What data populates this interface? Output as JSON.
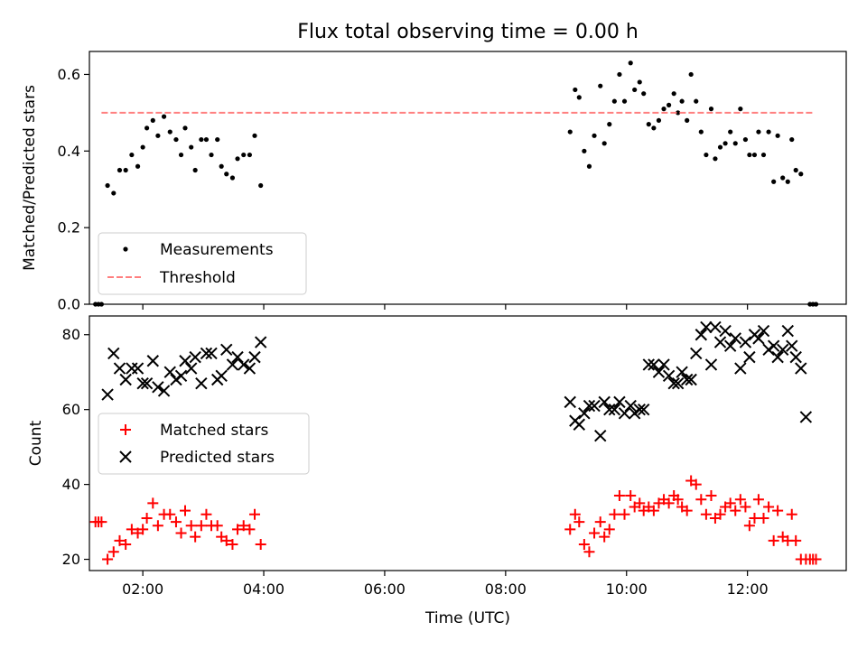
{
  "chart_data": [
    {
      "type": "scatter",
      "title": "Flux total observing time = 0.00 h",
      "xlabel": "",
      "ylabel": "Matched/Predicted stars",
      "xlim": [
        "01:07",
        "13:38"
      ],
      "ylim": [
        0,
        0.66
      ],
      "yticks": [
        0.0,
        0.2,
        0.4,
        0.6
      ],
      "yticklabels": [
        "0.0",
        "0.2",
        "0.4",
        "0.6"
      ],
      "legend_position": "lower-left",
      "series": [
        {
          "name": "Measurements",
          "marker": "dot",
          "color": "#000000",
          "points": [
            [
              "01:13",
              0.0
            ],
            [
              "01:16",
              0.0
            ],
            [
              "01:19",
              0.0
            ],
            [
              "01:25",
              0.31
            ],
            [
              "01:31",
              0.29
            ],
            [
              "01:37",
              0.35
            ],
            [
              "01:43",
              0.35
            ],
            [
              "01:49",
              0.39
            ],
            [
              "01:55",
              0.36
            ],
            [
              "02:00",
              0.41
            ],
            [
              "02:04",
              0.46
            ],
            [
              "02:10",
              0.48
            ],
            [
              "02:15",
              0.44
            ],
            [
              "02:21",
              0.49
            ],
            [
              "02:27",
              0.45
            ],
            [
              "02:33",
              0.43
            ],
            [
              "02:38",
              0.39
            ],
            [
              "02:42",
              0.46
            ],
            [
              "02:48",
              0.41
            ],
            [
              "02:52",
              0.35
            ],
            [
              "02:58",
              0.43
            ],
            [
              "03:03",
              0.43
            ],
            [
              "03:08",
              0.39
            ],
            [
              "03:14",
              0.43
            ],
            [
              "03:18",
              0.36
            ],
            [
              "03:23",
              0.34
            ],
            [
              "03:29",
              0.33
            ],
            [
              "03:34",
              0.38
            ],
            [
              "03:40",
              0.39
            ],
            [
              "03:46",
              0.39
            ],
            [
              "03:51",
              0.44
            ],
            [
              "03:57",
              0.31
            ],
            [
              "09:04",
              0.45
            ],
            [
              "09:09",
              0.56
            ],
            [
              "09:13",
              0.54
            ],
            [
              "09:18",
              0.4
            ],
            [
              "09:23",
              0.36
            ],
            [
              "09:28",
              0.44
            ],
            [
              "09:34",
              0.57
            ],
            [
              "09:38",
              0.42
            ],
            [
              "09:43",
              0.47
            ],
            [
              "09:48",
              0.53
            ],
            [
              "09:53",
              0.6
            ],
            [
              "09:58",
              0.53
            ],
            [
              "10:04",
              0.63
            ],
            [
              "10:08",
              0.56
            ],
            [
              "10:13",
              0.58
            ],
            [
              "10:17",
              0.55
            ],
            [
              "10:22",
              0.47
            ],
            [
              "10:27",
              0.46
            ],
            [
              "10:32",
              0.48
            ],
            [
              "10:37",
              0.51
            ],
            [
              "10:42",
              0.52
            ],
            [
              "10:47",
              0.55
            ],
            [
              "10:51",
              0.5
            ],
            [
              "10:55",
              0.53
            ],
            [
              "11:00",
              0.48
            ],
            [
              "11:04",
              0.6
            ],
            [
              "11:09",
              0.53
            ],
            [
              "11:14",
              0.45
            ],
            [
              "11:19",
              0.39
            ],
            [
              "11:24",
              0.51
            ],
            [
              "11:28",
              0.38
            ],
            [
              "11:33",
              0.41
            ],
            [
              "11:38",
              0.42
            ],
            [
              "11:43",
              0.45
            ],
            [
              "11:48",
              0.42
            ],
            [
              "11:53",
              0.51
            ],
            [
              "11:58",
              0.43
            ],
            [
              "12:02",
              0.39
            ],
            [
              "12:07",
              0.39
            ],
            [
              "12:11",
              0.45
            ],
            [
              "12:16",
              0.39
            ],
            [
              "12:21",
              0.45
            ],
            [
              "12:26",
              0.32
            ],
            [
              "12:30",
              0.44
            ],
            [
              "12:35",
              0.33
            ],
            [
              "12:40",
              0.32
            ],
            [
              "12:44",
              0.43
            ],
            [
              "12:48",
              0.35
            ],
            [
              "12:53",
              0.34
            ],
            [
              "13:02",
              0.0
            ],
            [
              "13:05",
              0.0
            ],
            [
              "13:08",
              0.0
            ]
          ]
        },
        {
          "name": "Threshold",
          "marker": "dashed-line",
          "color": "#ff7f7f",
          "points": [
            [
              "01:19",
              0.5
            ],
            [
              "13:05",
              0.5
            ]
          ]
        }
      ]
    },
    {
      "type": "scatter",
      "title": "",
      "xlabel": "Time (UTC)",
      "ylabel": "Count",
      "xlim": [
        "01:07",
        "13:38"
      ],
      "ylim": [
        17,
        85
      ],
      "yticks": [
        20,
        40,
        60,
        80
      ],
      "yticklabels": [
        "20",
        "40",
        "60",
        "80"
      ],
      "xticks": [
        "02:00",
        "04:00",
        "06:00",
        "08:00",
        "10:00",
        "12:00"
      ],
      "xticklabels": [
        "02:00",
        "04:00",
        "06:00",
        "08:00",
        "10:00",
        "12:00"
      ],
      "legend_position": "center-left",
      "series": [
        {
          "name": "Matched stars",
          "marker": "plus",
          "color": "#ff0000",
          "points": [
            [
              "01:13",
              30
            ],
            [
              "01:16",
              30
            ],
            [
              "01:19",
              30
            ],
            [
              "01:25",
              20
            ],
            [
              "01:31",
              22
            ],
            [
              "01:37",
              25
            ],
            [
              "01:43",
              24
            ],
            [
              "01:49",
              28
            ],
            [
              "01:55",
              27
            ],
            [
              "02:00",
              28
            ],
            [
              "02:04",
              31
            ],
            [
              "02:10",
              35
            ],
            [
              "02:15",
              29
            ],
            [
              "02:21",
              32
            ],
            [
              "02:27",
              32
            ],
            [
              "02:33",
              30
            ],
            [
              "02:38",
              27
            ],
            [
              "02:42",
              33
            ],
            [
              "02:48",
              29
            ],
            [
              "02:52",
              26
            ],
            [
              "02:58",
              29
            ],
            [
              "03:03",
              32
            ],
            [
              "03:08",
              29
            ],
            [
              "03:14",
              29
            ],
            [
              "03:18",
              26
            ],
            [
              "03:23",
              25
            ],
            [
              "03:29",
              24
            ],
            [
              "03:34",
              28
            ],
            [
              "03:40",
              29
            ],
            [
              "03:46",
              28
            ],
            [
              "03:51",
              32
            ],
            [
              "03:57",
              24
            ],
            [
              "09:04",
              28
            ],
            [
              "09:09",
              32
            ],
            [
              "09:13",
              30
            ],
            [
              "09:18",
              24
            ],
            [
              "09:23",
              22
            ],
            [
              "09:28",
              27
            ],
            [
              "09:34",
              30
            ],
            [
              "09:38",
              26
            ],
            [
              "09:43",
              28
            ],
            [
              "09:48",
              32
            ],
            [
              "09:53",
              37
            ],
            [
              "09:58",
              32
            ],
            [
              "10:04",
              37
            ],
            [
              "10:08",
              34
            ],
            [
              "10:13",
              35
            ],
            [
              "10:17",
              33
            ],
            [
              "10:22",
              34
            ],
            [
              "10:27",
              33
            ],
            [
              "10:32",
              35
            ],
            [
              "10:37",
              36
            ],
            [
              "10:42",
              35
            ],
            [
              "10:47",
              37
            ],
            [
              "10:51",
              36
            ],
            [
              "10:55",
              34
            ],
            [
              "11:00",
              33
            ],
            [
              "11:04",
              41
            ],
            [
              "11:09",
              40
            ],
            [
              "11:14",
              36
            ],
            [
              "11:19",
              32
            ],
            [
              "11:24",
              37
            ],
            [
              "11:28",
              31
            ],
            [
              "11:33",
              32
            ],
            [
              "11:38",
              34
            ],
            [
              "11:43",
              35
            ],
            [
              "11:48",
              33
            ],
            [
              "11:53",
              36
            ],
            [
              "11:58",
              34
            ],
            [
              "12:02",
              29
            ],
            [
              "12:07",
              31
            ],
            [
              "12:11",
              36
            ],
            [
              "12:16",
              31
            ],
            [
              "12:21",
              34
            ],
            [
              "12:26",
              25
            ],
            [
              "12:30",
              33
            ],
            [
              "12:35",
              26
            ],
            [
              "12:40",
              25
            ],
            [
              "12:44",
              32
            ],
            [
              "12:48",
              25
            ],
            [
              "12:53",
              20
            ],
            [
              "12:58",
              20
            ],
            [
              "13:02",
              20
            ],
            [
              "13:05",
              20
            ],
            [
              "13:08",
              20
            ]
          ]
        },
        {
          "name": "Predicted stars",
          "marker": "x",
          "color": "#000000",
          "points": [
            [
              "01:25",
              64
            ],
            [
              "01:31",
              75
            ],
            [
              "01:37",
              71
            ],
            [
              "01:43",
              68
            ],
            [
              "01:49",
              71
            ],
            [
              "01:55",
              71
            ],
            [
              "02:00",
              67
            ],
            [
              "02:04",
              67
            ],
            [
              "02:10",
              73
            ],
            [
              "02:15",
              66
            ],
            [
              "02:21",
              65
            ],
            [
              "02:27",
              70
            ],
            [
              "02:33",
              68
            ],
            [
              "02:38",
              69
            ],
            [
              "02:42",
              73
            ],
            [
              "02:48",
              71
            ],
            [
              "02:52",
              74
            ],
            [
              "02:58",
              67
            ],
            [
              "03:03",
              75
            ],
            [
              "03:08",
              75
            ],
            [
              "03:14",
              68
            ],
            [
              "03:18",
              69
            ],
            [
              "03:23",
              76
            ],
            [
              "03:29",
              72
            ],
            [
              "03:34",
              74
            ],
            [
              "03:40",
              72
            ],
            [
              "03:46",
              71
            ],
            [
              "03:51",
              74
            ],
            [
              "03:57",
              78
            ],
            [
              "09:04",
              62
            ],
            [
              "09:09",
              57
            ],
            [
              "09:13",
              56
            ],
            [
              "09:18",
              59
            ],
            [
              "09:23",
              61
            ],
            [
              "09:28",
              61
            ],
            [
              "09:34",
              53
            ],
            [
              "09:38",
              62
            ],
            [
              "09:43",
              60
            ],
            [
              "09:48",
              60
            ],
            [
              "09:53",
              62
            ],
            [
              "09:58",
              59
            ],
            [
              "10:04",
              61
            ],
            [
              "10:08",
              59
            ],
            [
              "10:13",
              60
            ],
            [
              "10:17",
              60
            ],
            [
              "10:22",
              72
            ],
            [
              "10:27",
              72
            ],
            [
              "10:32",
              70
            ],
            [
              "10:37",
              72
            ],
            [
              "10:42",
              69
            ],
            [
              "10:47",
              67
            ],
            [
              "10:51",
              67
            ],
            [
              "10:55",
              70
            ],
            [
              "11:00",
              68
            ],
            [
              "11:04",
              68
            ],
            [
              "11:09",
              75
            ],
            [
              "11:14",
              80
            ],
            [
              "11:19",
              82
            ],
            [
              "11:24",
              72
            ],
            [
              "11:28",
              82
            ],
            [
              "11:33",
              78
            ],
            [
              "11:38",
              81
            ],
            [
              "11:43",
              77
            ],
            [
              "11:48",
              79
            ],
            [
              "11:53",
              71
            ],
            [
              "11:58",
              78
            ],
            [
              "12:02",
              74
            ],
            [
              "12:07",
              80
            ],
            [
              "12:11",
              79
            ],
            [
              "12:16",
              81
            ],
            [
              "12:21",
              76
            ],
            [
              "12:26",
              77
            ],
            [
              "12:30",
              74
            ],
            [
              "12:35",
              76
            ],
            [
              "12:40",
              81
            ],
            [
              "12:44",
              77
            ],
            [
              "12:48",
              74
            ],
            [
              "12:53",
              71
            ],
            [
              "12:58",
              58
            ]
          ]
        }
      ]
    }
  ]
}
